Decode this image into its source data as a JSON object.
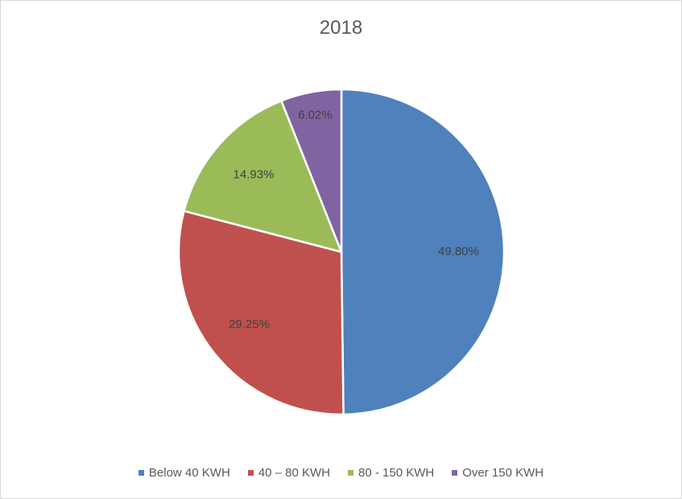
{
  "chart_data": {
    "type": "pie",
    "title": "2018",
    "categories": [
      "Below 40 KWH",
      "40 – 80 KWH",
      "80 - 150 KWH",
      "Over 150 KWH"
    ],
    "values": [
      49.8,
      29.25,
      14.93,
      6.02
    ],
    "value_labels": [
      "49.80%",
      "29.25%",
      "14.93%",
      "6.02%"
    ],
    "colors": [
      "#4f81bd",
      "#c0504d",
      "#9bbb59",
      "#8064a2"
    ],
    "legend_position": "bottom",
    "slice_order": "clockwise from 12 o'clock"
  }
}
